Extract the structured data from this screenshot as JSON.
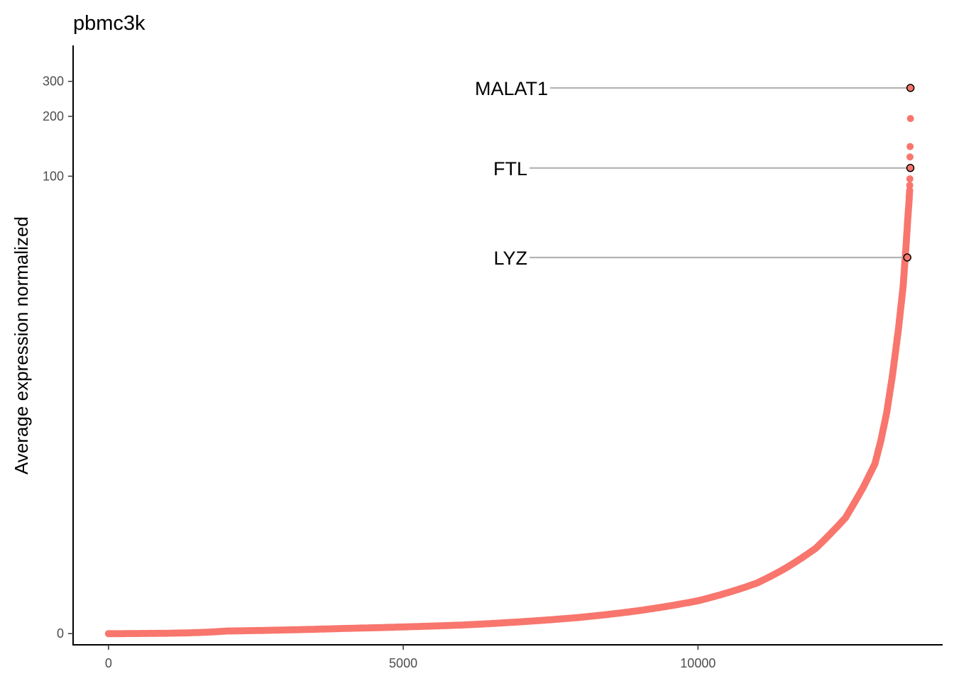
{
  "chart_data": {
    "type": "scatter",
    "title": "pbmc3k",
    "xlabel": "",
    "ylabel": "Average expression normalized",
    "x_ticks": [
      "0",
      "5000",
      "10000"
    ],
    "y_ticks": [
      "0",
      "100",
      "200",
      "300"
    ],
    "xlim": [
      -600,
      14150
    ],
    "y_scale": "asinh",
    "ylim": [
      -0.13,
      455
    ],
    "grid": false,
    "point_color": "#F8766D",
    "line_color": "#b3b3b3",
    "curve": [
      {
        "x": 0,
        "y": 0
      },
      {
        "x": 2000,
        "y": 0.03
      },
      {
        "x": 4000,
        "y": 0.06
      },
      {
        "x": 6000,
        "y": 0.1
      },
      {
        "x": 8000,
        "y": 0.19
      },
      {
        "x": 9000,
        "y": 0.27
      },
      {
        "x": 10000,
        "y": 0.39
      },
      {
        "x": 11000,
        "y": 0.62
      },
      {
        "x": 11500,
        "y": 0.84
      },
      {
        "x": 12000,
        "y": 1.16
      },
      {
        "x": 12500,
        "y": 1.78
      },
      {
        "x": 12800,
        "y": 2.62
      },
      {
        "x": 13000,
        "y": 3.5
      },
      {
        "x": 13100,
        "y": 4.6
      },
      {
        "x": 13200,
        "y": 6.4
      },
      {
        "x": 13300,
        "y": 10
      },
      {
        "x": 13400,
        "y": 17
      },
      {
        "x": 13480,
        "y": 28
      },
      {
        "x": 13530,
        "y": 45
      },
      {
        "x": 13560,
        "y": 62
      },
      {
        "x": 13580,
        "y": 75
      },
      {
        "x": 13590,
        "y": 85
      }
    ],
    "outliers": [
      {
        "x": 13592,
        "y": 90
      },
      {
        "x": 13594,
        "y": 97
      },
      {
        "x": 13596,
        "y": 125
      },
      {
        "x": 13598,
        "y": 141
      },
      {
        "x": 13604,
        "y": 195
      }
    ],
    "annotations": [
      {
        "label": "MALAT1",
        "x": 13604,
        "y": 278
      },
      {
        "label": "FTL",
        "x": 13602,
        "y": 110
      },
      {
        "label": "LYZ",
        "x": 13550,
        "y": 39
      }
    ]
  }
}
